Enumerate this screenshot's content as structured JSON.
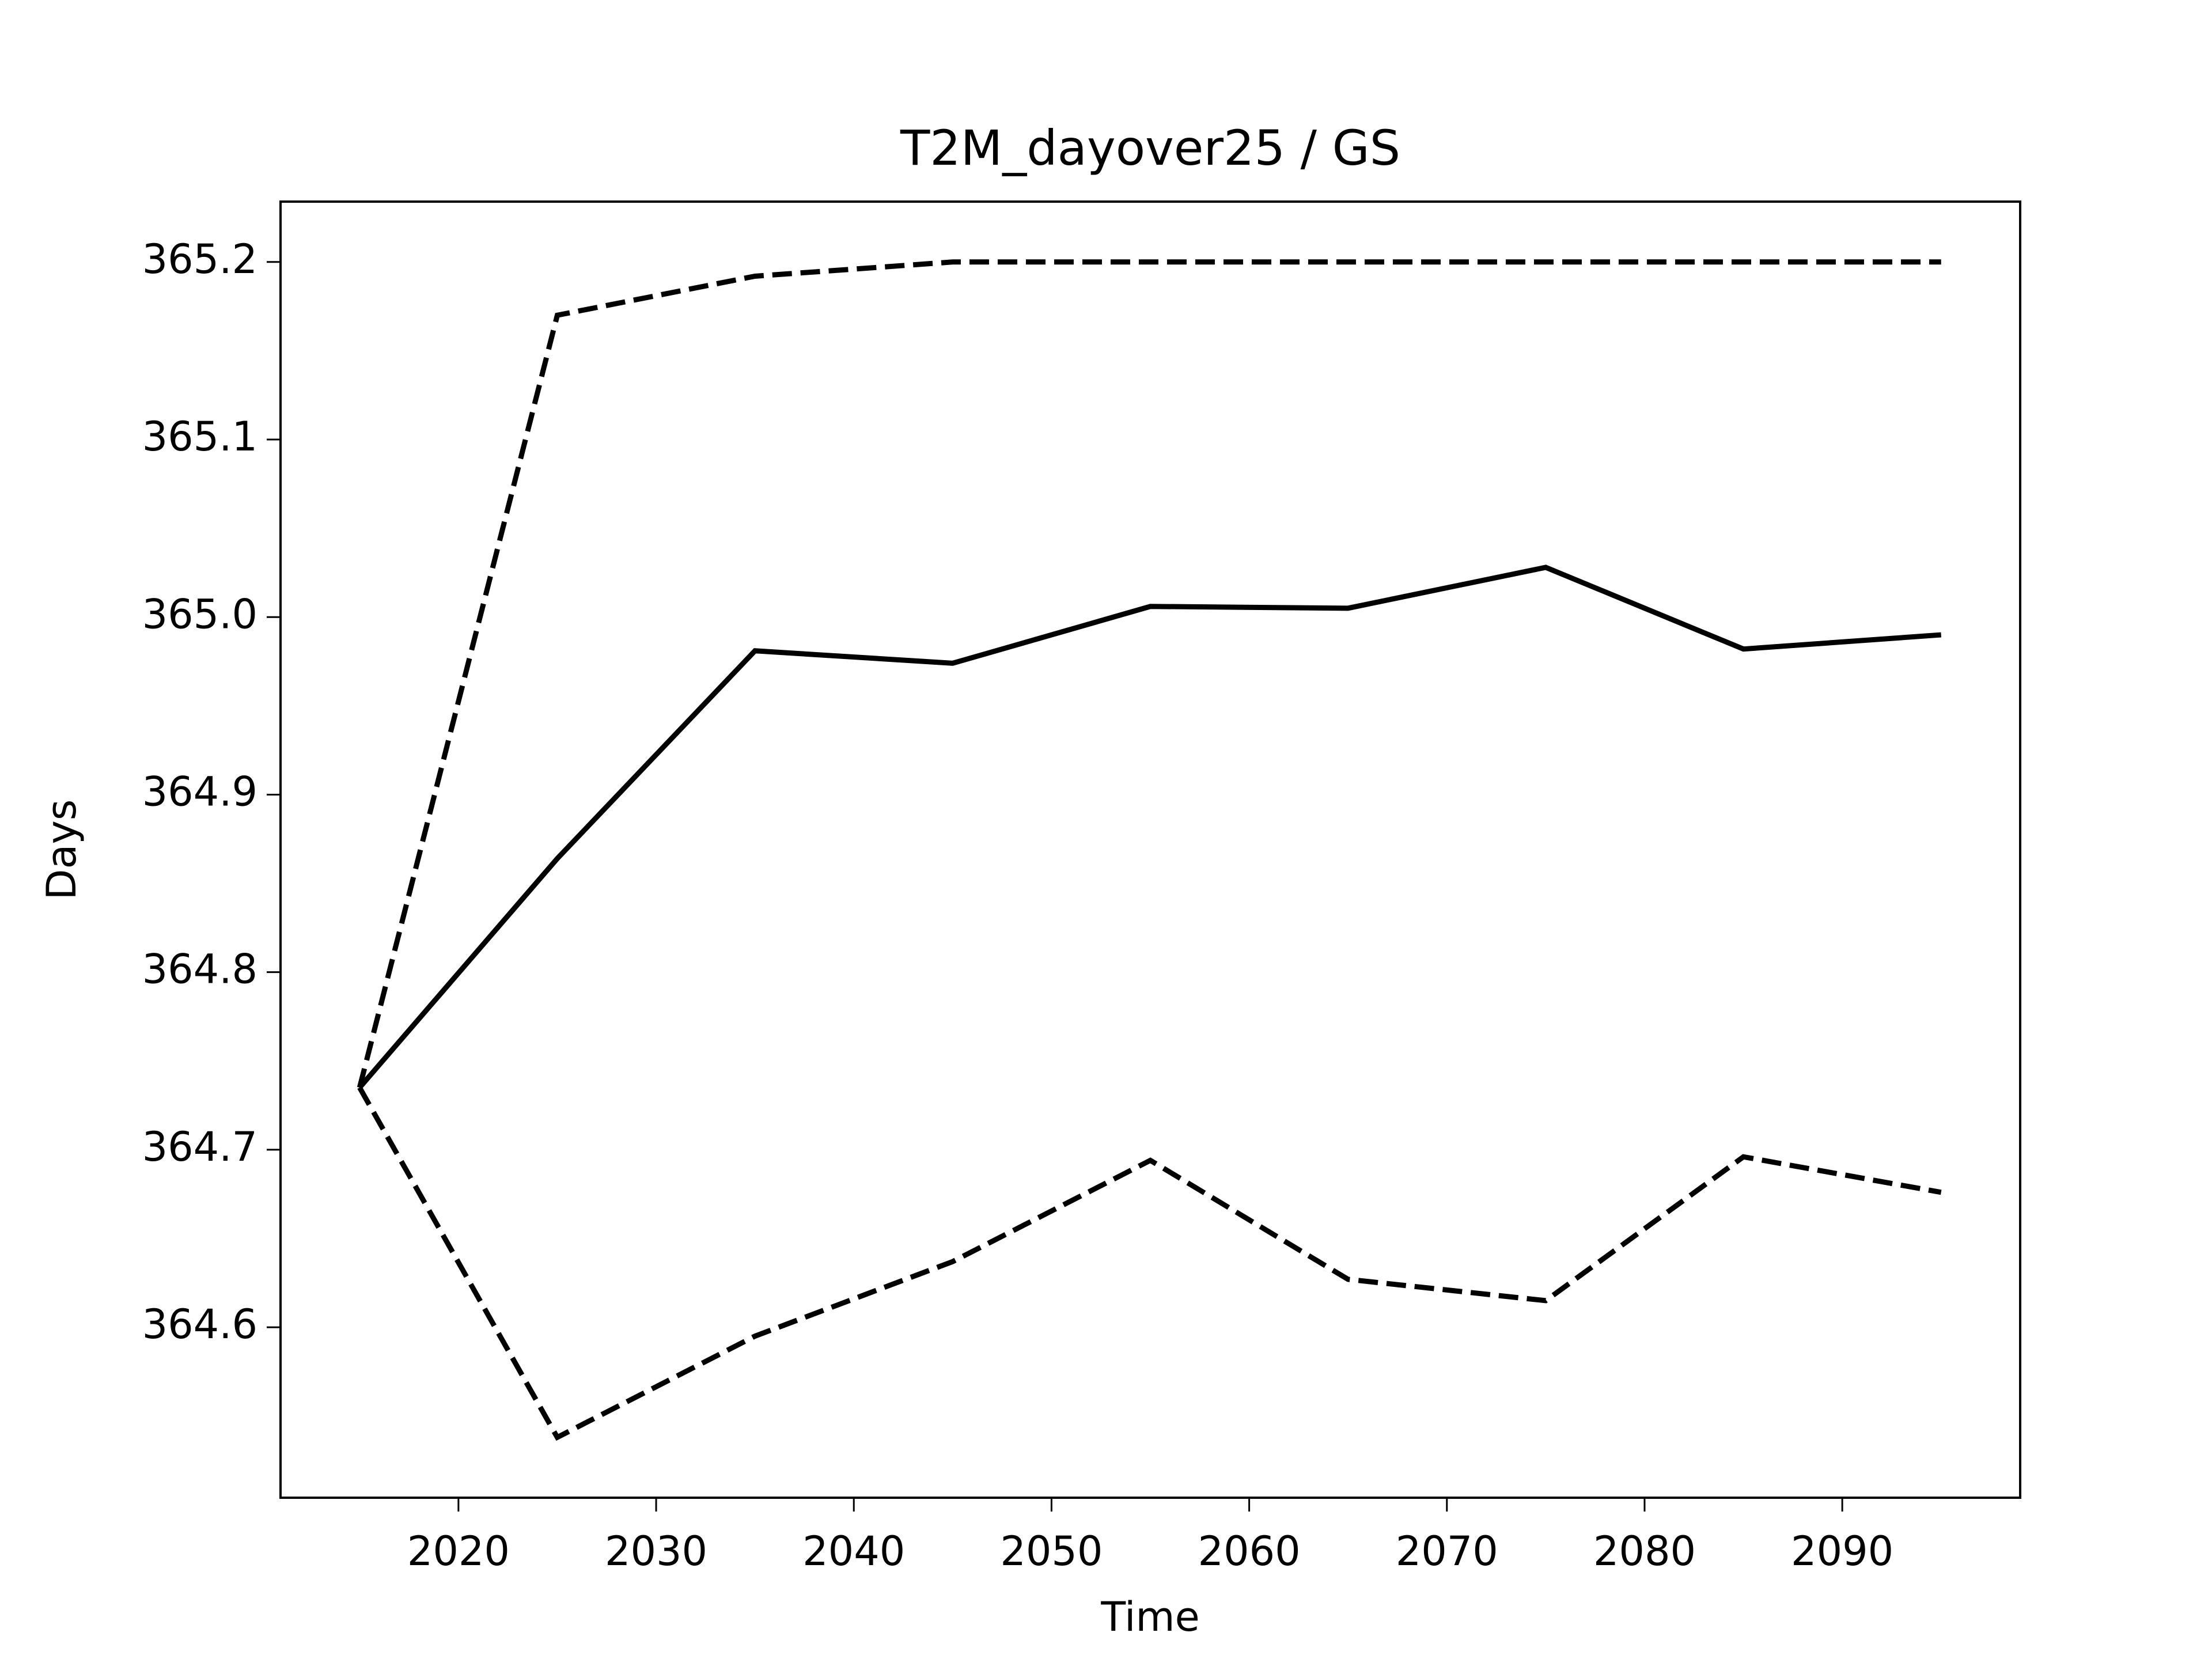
{
  "chart_data": {
    "type": "line",
    "title": "T2M_dayover25 / GS",
    "xlabel": "Time",
    "ylabel": "Days",
    "x": [
      2015,
      2025,
      2035,
      2045,
      2055,
      2065,
      2075,
      2085,
      2095
    ],
    "series": [
      {
        "color": "#000000",
        "linestyle": "solid",
        "values": [
          364.735,
          364.864,
          364.981,
          364.974,
          365.006,
          365.005,
          365.028,
          364.982,
          364.99
        ]
      },
      {
        "color": "#000000",
        "linestyle": "dashed",
        "values": [
          364.735,
          365.17,
          365.192,
          365.2,
          365.2,
          365.2,
          365.2,
          365.2,
          365.2
        ]
      },
      {
        "color": "#000000",
        "linestyle": "dashed",
        "values": [
          364.735,
          364.538,
          364.595,
          364.637,
          364.694,
          364.627,
          364.615,
          364.696,
          364.676
        ]
      }
    ],
    "xlim": [
      2011,
      2099
    ],
    "xticks": [
      2020,
      2030,
      2040,
      2050,
      2060,
      2070,
      2080,
      2090
    ],
    "ylim": [
      364.504,
      365.234
    ],
    "yticks": [
      364.6,
      364.7,
      364.8,
      364.9,
      {
        "value": 365,
        "label": "365.0"
      },
      365.1,
      365.2
    ],
    "grid": false
  }
}
